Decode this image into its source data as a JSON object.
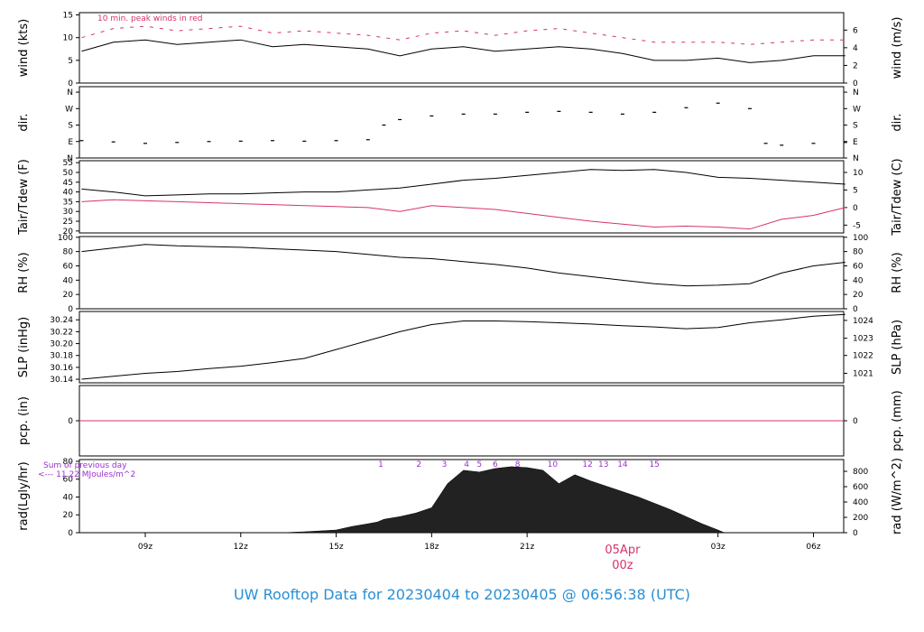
{
  "title": "UW Rooftop Data for 20230404  to  20230405 @ 06:56:38  (UTC)",
  "x_axis": {
    "ticks": [
      "09z",
      "12z",
      "15z",
      "18z",
      "21z",
      "03z",
      "06z"
    ],
    "tick_hours": [
      9,
      12,
      15,
      18,
      21,
      27,
      30
    ],
    "day_marker_label": "05Apr",
    "day_marker_hour_label": "00z",
    "range_hours": [
      6.93,
      30.95
    ],
    "colors": {
      "day_marker": "#d6336c"
    }
  },
  "chart_data": [
    {
      "id": "wind",
      "type": "line",
      "ylabel_left": "wind (kts)",
      "ylabel_right": "wind (m/s)",
      "yticks_left": [
        "0",
        "5",
        "10",
        "15"
      ],
      "yticks_left_values": [
        0,
        5,
        10,
        15
      ],
      "yticks_right": [
        "0",
        "2",
        "4",
        "6"
      ],
      "yticks_right_values_kts": [
        0,
        3.89,
        7.78,
        11.66
      ],
      "ylim": [
        0,
        15.5
      ],
      "annotation": "10 min. peak winds in red",
      "series": [
        {
          "color": "#000000",
          "x": [
            7,
            8,
            9,
            10,
            11,
            12,
            13,
            14,
            15,
            16,
            17,
            18,
            19,
            20,
            21,
            22,
            23,
            24,
            25,
            26,
            27,
            28,
            29,
            30,
            31
          ],
          "y": [
            7,
            9,
            9.5,
            8.5,
            9,
            9.5,
            8,
            8.5,
            8,
            7.5,
            6,
            7.5,
            8,
            7,
            7.5,
            8,
            7.5,
            6.5,
            5,
            5,
            5.5,
            4.5,
            5,
            6,
            6
          ]
        },
        {
          "style": "dashed",
          "color": "#d6336c",
          "x": [
            7,
            8,
            9,
            10,
            11,
            12,
            13,
            14,
            15,
            16,
            17,
            18,
            19,
            20,
            21,
            22,
            23,
            24,
            25,
            26,
            27,
            28,
            29,
            30,
            31
          ],
          "y": [
            10,
            12,
            12.5,
            11.5,
            12,
            12.5,
            11,
            11.5,
            11,
            10.5,
            9.5,
            11,
            11.5,
            10.5,
            11.5,
            12,
            11,
            10,
            9,
            9,
            9,
            8.5,
            9,
            9.5,
            9.5
          ]
        }
      ]
    },
    {
      "id": "dir",
      "type": "scatter",
      "ylabel_left": "dir.",
      "ylabel_right": "dir.",
      "yticks_left": [
        "N",
        "E",
        "S",
        "W",
        "N"
      ],
      "yticks_left_values": [
        0,
        90,
        180,
        270,
        360
      ],
      "yticks_right": [
        "N",
        "E",
        "S",
        "W",
        "N"
      ],
      "ylim": [
        0,
        390
      ],
      "series": [
        {
          "color": "#000000",
          "x": [
            7,
            8,
            9,
            10,
            11,
            12,
            13,
            14,
            15,
            16,
            16.5,
            17,
            18,
            19,
            20,
            21,
            22,
            23,
            24,
            25,
            26,
            27,
            28,
            28.5,
            29,
            30,
            31
          ],
          "y": [
            95,
            88,
            80,
            85,
            90,
            92,
            95,
            92,
            95,
            100,
            180,
            210,
            230,
            240,
            240,
            250,
            255,
            250,
            240,
            250,
            275,
            300,
            270,
            80,
            70,
            80,
            85
          ]
        }
      ]
    },
    {
      "id": "temp",
      "type": "line",
      "ylabel_left": "Tair/Tdew (F)",
      "ylabel_right": "Tair/Tdew (C)",
      "yticks_left": [
        "20",
        "25",
        "30",
        "35",
        "40",
        "45",
        "50",
        "55"
      ],
      "yticks_left_values": [
        20,
        25,
        30,
        35,
        40,
        45,
        50,
        55
      ],
      "yticks_right": [
        "-5",
        "0",
        "5",
        "10"
      ],
      "yticks_right_values_f": [
        23,
        32,
        41,
        50
      ],
      "ylim": [
        19,
        56
      ],
      "series": [
        {
          "name": "Tair",
          "color": "#000000",
          "x": [
            7,
            8,
            9,
            10,
            11,
            12,
            13,
            14,
            15,
            16,
            17,
            18,
            19,
            20,
            21,
            22,
            23,
            24,
            25,
            26,
            27,
            28,
            29,
            30,
            31
          ],
          "y": [
            41.5,
            40,
            38,
            38.5,
            39,
            39,
            39.5,
            40,
            40,
            41,
            42,
            44,
            46,
            47,
            48.5,
            50,
            51.5,
            51,
            51.5,
            50,
            47.5,
            47,
            46,
            45,
            44
          ]
        },
        {
          "name": "Tdew",
          "color": "#d6336c",
          "x": [
            7,
            8,
            9,
            10,
            11,
            12,
            13,
            14,
            15,
            16,
            17,
            18,
            19,
            20,
            21,
            22,
            23,
            24,
            25,
            26,
            27,
            28,
            29,
            30,
            31
          ],
          "y": [
            35,
            36,
            35.5,
            35,
            34.5,
            34,
            33.5,
            33,
            32.5,
            32,
            30,
            33,
            32,
            31,
            29,
            27,
            25,
            23.5,
            22,
            22.5,
            22,
            21,
            26,
            28,
            32
          ]
        }
      ]
    },
    {
      "id": "rh",
      "type": "line",
      "ylabel_left": "RH (%)",
      "ylabel_right": "RH (%)",
      "yticks_left": [
        "0",
        "20",
        "40",
        "60",
        "80",
        "100"
      ],
      "yticks_left_values": [
        0,
        20,
        40,
        60,
        80,
        100
      ],
      "yticks_right": [
        "0",
        "20",
        "40",
        "60",
        "80",
        "100"
      ],
      "ylim": [
        0,
        101
      ],
      "series": [
        {
          "color": "#000000",
          "x": [
            7,
            8,
            9,
            10,
            11,
            12,
            13,
            14,
            15,
            16,
            17,
            18,
            19,
            20,
            21,
            22,
            23,
            24,
            25,
            26,
            27,
            28,
            29,
            30,
            31
          ],
          "y": [
            80,
            85,
            90,
            88,
            87,
            86,
            84,
            82,
            80,
            76,
            72,
            70,
            66,
            62,
            57,
            50,
            45,
            40,
            35,
            32,
            33,
            35,
            50,
            60,
            65
          ]
        }
      ]
    },
    {
      "id": "slp",
      "type": "line",
      "ylabel_left": "SLP (inHg)",
      "ylabel_right": "SLP (hPa)",
      "yticks_left": [
        "30.14",
        "30.16",
        "30.18",
        "30.20",
        "30.22",
        "30.24"
      ],
      "yticks_left_values": [
        30.14,
        30.16,
        30.18,
        30.2,
        30.22,
        30.24
      ],
      "yticks_right": [
        "1021",
        "1022",
        "1023",
        "1024"
      ],
      "yticks_right_values_inhg": [
        30.15,
        30.18,
        30.209,
        30.239
      ],
      "ylim": [
        30.134,
        30.254
      ],
      "series": [
        {
          "color": "#000000",
          "x": [
            7,
            8,
            9,
            10,
            11,
            12,
            13,
            14,
            15,
            16,
            17,
            18,
            19,
            20,
            21,
            22,
            23,
            24,
            25,
            26,
            27,
            28,
            29,
            30,
            31
          ],
          "y": [
            30.14,
            30.145,
            30.15,
            30.153,
            30.158,
            30.162,
            30.168,
            30.175,
            30.19,
            30.205,
            30.22,
            30.232,
            30.238,
            30.238,
            30.237,
            30.235,
            30.233,
            30.23,
            30.228,
            30.225,
            30.227,
            30.235,
            30.24,
            30.246,
            30.249
          ]
        }
      ]
    },
    {
      "id": "pcp",
      "type": "line",
      "ylabel_left": "pcp. (in)",
      "ylabel_right": "pcp. (mm)",
      "yticks_left": [
        "0"
      ],
      "yticks_left_values": [
        0
      ],
      "yticks_right": [
        "0"
      ],
      "ylim": [
        -1,
        1
      ],
      "series": [
        {
          "color": "#d6336c",
          "x": [
            6.93,
            30.95
          ],
          "y": [
            0,
            0
          ]
        }
      ]
    },
    {
      "id": "rad",
      "type": "area",
      "ylabel_left": "rad(Lgly/hr)",
      "ylabel_right": "rad (W/m^2)",
      "yticks_left": [
        "0",
        "20",
        "40",
        "60",
        "80"
      ],
      "yticks_left_values": [
        0,
        20,
        40,
        60,
        80
      ],
      "yticks_right": [
        "0",
        "200",
        "400",
        "600",
        "800"
      ],
      "yticks_right_values_ly": [
        0,
        17.2,
        34.4,
        51.6,
        68.8
      ],
      "ylim": [
        0,
        82
      ],
      "sum_label": "Sum of previous day",
      "sum_value": "<--- 11.22 MJoules/m^2",
      "markers": [
        "1",
        "2",
        "3",
        "4",
        "5",
        "6",
        "8",
        "10",
        "12",
        "13",
        "14",
        "15"
      ],
      "marker_hours": [
        16.4,
        17.6,
        18.4,
        19.1,
        19.5,
        20.0,
        20.7,
        21.8,
        22.9,
        23.4,
        24.0,
        25.0
      ],
      "series": [
        {
          "color": "#000000",
          "x": [
            13.3,
            14,
            15,
            15.5,
            16,
            16.3,
            16.5,
            17,
            17.5,
            18,
            18.5,
            19,
            19.5,
            20,
            20.5,
            21,
            21.5,
            22,
            22.5,
            23,
            23.5,
            24,
            24.5,
            25,
            25.5,
            26,
            26.5,
            27,
            27.2
          ],
          "y": [
            0,
            1,
            3,
            7,
            10,
            12,
            15,
            18,
            22,
            28,
            55,
            70,
            68,
            72,
            74,
            73,
            70,
            55,
            65,
            58,
            52,
            46,
            40,
            33,
            26,
            18,
            10,
            3,
            0
          ]
        }
      ]
    }
  ]
}
